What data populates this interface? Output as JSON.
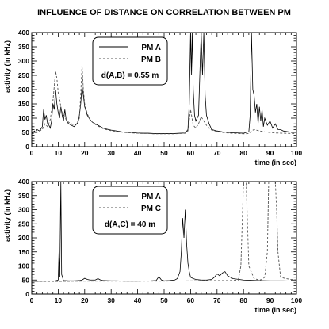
{
  "title": "INFLUENCE OF DISTANCE ON CORRELATION BETWEEN PM",
  "chart_data": [
    {
      "type": "line",
      "title": "",
      "xlabel": "time (in sec)",
      "ylabel": "activity (in kHz)",
      "xlim": [
        0,
        100
      ],
      "ylim": [
        0,
        400
      ],
      "xticks": [
        0,
        10,
        20,
        30,
        40,
        50,
        60,
        70,
        80,
        90,
        100
      ],
      "yticks": [
        0,
        50,
        100,
        150,
        200,
        250,
        300,
        350,
        400
      ],
      "grid": false,
      "legend": {
        "placement": "top-center",
        "entries": [
          "PM A",
          "PM B"
        ],
        "note": "d(A,B) = 0.55 m"
      },
      "series": [
        {
          "name": "PM A",
          "style": "solid",
          "color": "#000000",
          "x": [
            0,
            1,
            1.5,
            2,
            3,
            4,
            4.5,
            5,
            5.5,
            6,
            6.5,
            7,
            7.5,
            8,
            8.5,
            9,
            9.5,
            10,
            10.5,
            11,
            11.5,
            12,
            12.5,
            13,
            13.5,
            14,
            15,
            16,
            17,
            17.5,
            18,
            18.5,
            19,
            19.5,
            20,
            21,
            22,
            23,
            24,
            25,
            26,
            27,
            28,
            30,
            32,
            34,
            36,
            38,
            40,
            42,
            44,
            46,
            48,
            50,
            52,
            54,
            56,
            58,
            59,
            59.5,
            60,
            60.3,
            60.6,
            61,
            61.5,
            62,
            63,
            64,
            64.5,
            65,
            65.5,
            66,
            67,
            68,
            70,
            72,
            74,
            76,
            78,
            80,
            81,
            82,
            82.5,
            83,
            83.5,
            84,
            84.5,
            85,
            85.5,
            86,
            86.5,
            87,
            87.5,
            88,
            89,
            90,
            91,
            92,
            93,
            94,
            95,
            97,
            100
          ],
          "y": [
            45,
            55,
            50,
            60,
            55,
            70,
            130,
            95,
            110,
            80,
            75,
            65,
            90,
            150,
            130,
            200,
            150,
            120,
            100,
            140,
            110,
            90,
            130,
            95,
            85,
            80,
            75,
            70,
            80,
            85,
            110,
            150,
            210,
            180,
            140,
            110,
            95,
            85,
            80,
            75,
            70,
            65,
            62,
            58,
            55,
            52,
            50,
            50,
            48,
            47,
            47,
            46,
            46,
            46,
            46,
            46,
            47,
            48,
            60,
            150,
            400,
            250,
            400,
            200,
            110,
            90,
            110,
            400,
            250,
            400,
            180,
            110,
            80,
            60,
            55,
            52,
            50,
            49,
            48,
            47,
            50,
            52,
            110,
            400,
            200,
            180,
            120,
            150,
            80,
            140,
            90,
            130,
            70,
            100,
            75,
            90,
            65,
            80,
            60,
            60,
            55,
            52,
            50
          ]
        },
        {
          "name": "PM B",
          "style": "dashed",
          "color": "#555555",
          "x": [
            0,
            2,
            4,
            5,
            6,
            7,
            8,
            8.5,
            9,
            9.5,
            10,
            10.5,
            11,
            11.5,
            12,
            13,
            14,
            15,
            16,
            17,
            18,
            18.5,
            19,
            19.5,
            20,
            21,
            22,
            23,
            24,
            25,
            26,
            27,
            28,
            30,
            32,
            34,
            36,
            38,
            40,
            42,
            44,
            46,
            48,
            50,
            52,
            54,
            56,
            58,
            59,
            60,
            61,
            62,
            63,
            64,
            65,
            66,
            67,
            68,
            70,
            72,
            74,
            76,
            78,
            80,
            82,
            83,
            84,
            86,
            88,
            90,
            92,
            95,
            100
          ],
          "y": [
            45,
            50,
            60,
            80,
            70,
            95,
            160,
            210,
            265,
            240,
            190,
            170,
            140,
            120,
            110,
            95,
            85,
            80,
            75,
            80,
            100,
            180,
            285,
            200,
            150,
            115,
            95,
            85,
            78,
            72,
            68,
            63,
            60,
            56,
            53,
            51,
            49,
            48,
            47,
            46,
            46,
            45,
            45,
            45,
            45,
            45,
            46,
            47,
            55,
            130,
            75,
            65,
            80,
            105,
            90,
            75,
            65,
            58,
            53,
            50,
            48,
            47,
            46,
            45,
            46,
            55,
            60,
            55,
            52,
            50,
            48,
            47,
            46
          ]
        }
      ]
    },
    {
      "type": "line",
      "title": "",
      "xlabel": "time (in sec)",
      "ylabel": "activity (in kHz)",
      "xlim": [
        0,
        100
      ],
      "ylim": [
        0,
        400
      ],
      "xticks": [
        0,
        10,
        20,
        30,
        40,
        50,
        60,
        70,
        80,
        90,
        100
      ],
      "yticks": [
        0,
        50,
        100,
        150,
        200,
        250,
        300,
        350,
        400
      ],
      "grid": false,
      "legend": {
        "placement": "top-center",
        "entries": [
          "PM A",
          "PM C"
        ],
        "note": "d(A,C) = 40 m"
      },
      "series": [
        {
          "name": "PM A",
          "style": "solid",
          "color": "#000000",
          "x": [
            0,
            5,
            9,
            10,
            10.3,
            10.6,
            11,
            11.3,
            12,
            14,
            16,
            18,
            19,
            20,
            21,
            22,
            24,
            25,
            26,
            27,
            30,
            32,
            35,
            40,
            45,
            47,
            48,
            49,
            50,
            52,
            54,
            55,
            56,
            56.5,
            57,
            57.5,
            58,
            58.5,
            59,
            59.5,
            60,
            61,
            62,
            64,
            66,
            68,
            69,
            70,
            71,
            72,
            73,
            74,
            76,
            80,
            85,
            90,
            95,
            100
          ],
          "y": [
            45,
            46,
            47,
            50,
            150,
            60,
            400,
            70,
            48,
            47,
            47,
            48,
            50,
            56,
            52,
            50,
            50,
            55,
            50,
            48,
            47,
            47,
            46,
            46,
            47,
            48,
            62,
            50,
            47,
            48,
            50,
            55,
            80,
            150,
            270,
            200,
            300,
            180,
            110,
            80,
            60,
            55,
            52,
            50,
            50,
            52,
            60,
            72,
            65,
            75,
            80,
            65,
            55,
            50,
            48,
            47,
            47,
            46
          ]
        },
        {
          "name": "PM C",
          "style": "dashed",
          "color": "#555555",
          "x": [
            0,
            10,
            20,
            30,
            40,
            50,
            60,
            70,
            75,
            78,
            79,
            79.5,
            80,
            80.5,
            81,
            81.5,
            82,
            84,
            86,
            87,
            88,
            89,
            89.5,
            90,
            90.5,
            91,
            92,
            92.5,
            93,
            94,
            96,
            98,
            100
          ],
          "y": [
            45,
            45,
            46,
            46,
            46,
            46,
            47,
            48,
            48,
            50,
            100,
            250,
            400,
            400,
            400,
            250,
            100,
            55,
            50,
            52,
            60,
            150,
            400,
            400,
            400,
            400,
            400,
            300,
            150,
            60,
            55,
            52,
            50
          ]
        }
      ]
    }
  ]
}
